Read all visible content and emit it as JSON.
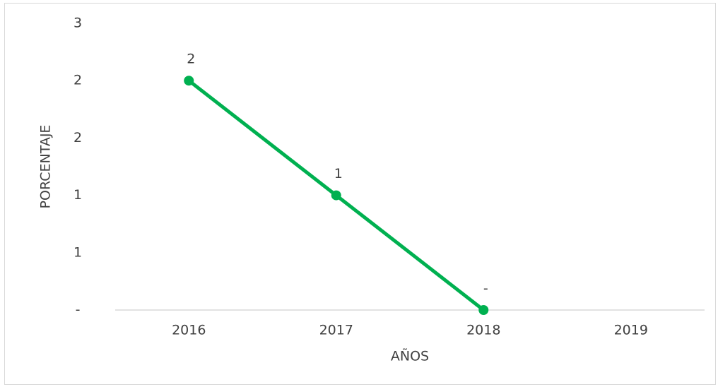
{
  "chart_data": {
    "type": "line",
    "x_label": "AÑOS",
    "y_label": "PORCENTAJE",
    "categories": [
      "2016",
      "2017",
      "2018",
      "2019"
    ],
    "series": [
      {
        "name": "PORCENTAJE",
        "color": "#00b050",
        "values": [
          2,
          1,
          0,
          null
        ],
        "value_labels": [
          "2",
          "1",
          "-",
          null
        ]
      }
    ],
    "ylim": [
      0,
      2.5
    ],
    "yticks": [
      {
        "value": 0,
        "label": "-"
      },
      {
        "value": 0.5,
        "label": "1"
      },
      1,
      {
        "value": 1.5,
        "label": "2"
      },
      2,
      {
        "value": 2.5,
        "label": "3"
      }
    ],
    "grid": false,
    "legend": false
  }
}
